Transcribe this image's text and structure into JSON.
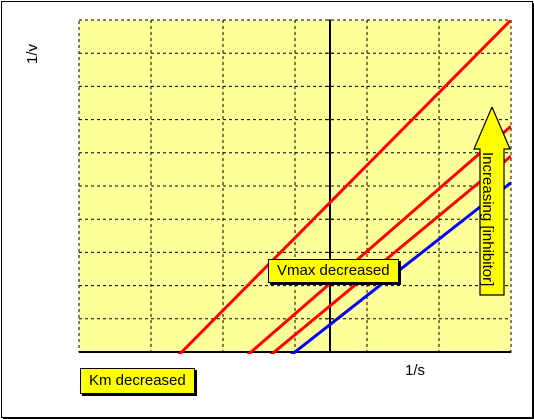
{
  "chart_data": {
    "type": "line",
    "title": "",
    "xlabel": "1/s",
    "ylabel": "1/v",
    "grid": true,
    "grid_style": "dashed",
    "plot_background": "#ffff99",
    "series": [
      {
        "color": "#ff0000",
        "x": [
          -0.63,
          1.0
        ],
        "y": [
          -0.03,
          1.0
        ]
      },
      {
        "color": "#ff0000",
        "x": [
          -0.36,
          1.0
        ],
        "y": [
          -0.03,
          0.68
        ]
      },
      {
        "color": "#ff0000",
        "x": [
          -0.27,
          1.0
        ],
        "y": [
          -0.03,
          0.59
        ]
      },
      {
        "color": "#0000ff",
        "x": [
          -0.19,
          1.0
        ],
        "y": [
          -0.03,
          0.51
        ]
      }
    ],
    "annotations": {
      "vmax": "Vmax decreased",
      "km": "Km decreased",
      "inhibitor": "Increasing [inhibitor]"
    },
    "box_color": "#ffff00"
  }
}
